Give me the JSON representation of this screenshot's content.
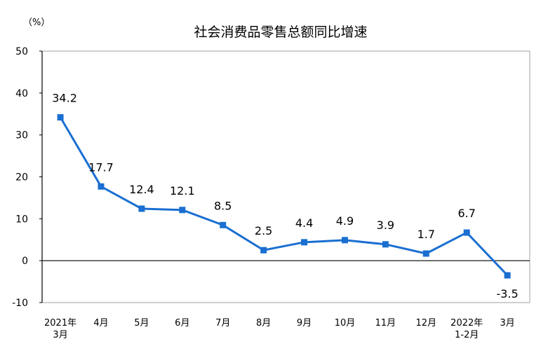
{
  "chart_data": {
    "type": "line",
    "title": "社会消费品零售总额同比增速",
    "ylabel": "（%）",
    "xlabel": "",
    "categories": [
      "2021年\n3月",
      "4月",
      "5月",
      "6月",
      "7月",
      "8月",
      "9月",
      "10月",
      "11月",
      "12月",
      "2022年\n1-2月",
      "3月"
    ],
    "series": [
      {
        "values": [
          34.2,
          17.7,
          12.4,
          12.1,
          8.5,
          2.5,
          4.4,
          4.9,
          3.9,
          1.7,
          6.7,
          -3.5
        ]
      }
    ],
    "data_labels": [
      "34.2",
      "17.7",
      "12.4",
      "12.1",
      "8.5",
      "2.5",
      "4.4",
      "4.9",
      "3.9",
      "1.7",
      "6.7",
      "-3.5"
    ],
    "ylim": [
      -10,
      50
    ],
    "yticks": [
      -10,
      0,
      10,
      20,
      30,
      40,
      50
    ],
    "grid": false,
    "legend": "none",
    "colors": {
      "line": "#1a6fd1",
      "marker": "#1a6fd1",
      "axis": "#000000",
      "frame": "#a0a0a0"
    }
  }
}
